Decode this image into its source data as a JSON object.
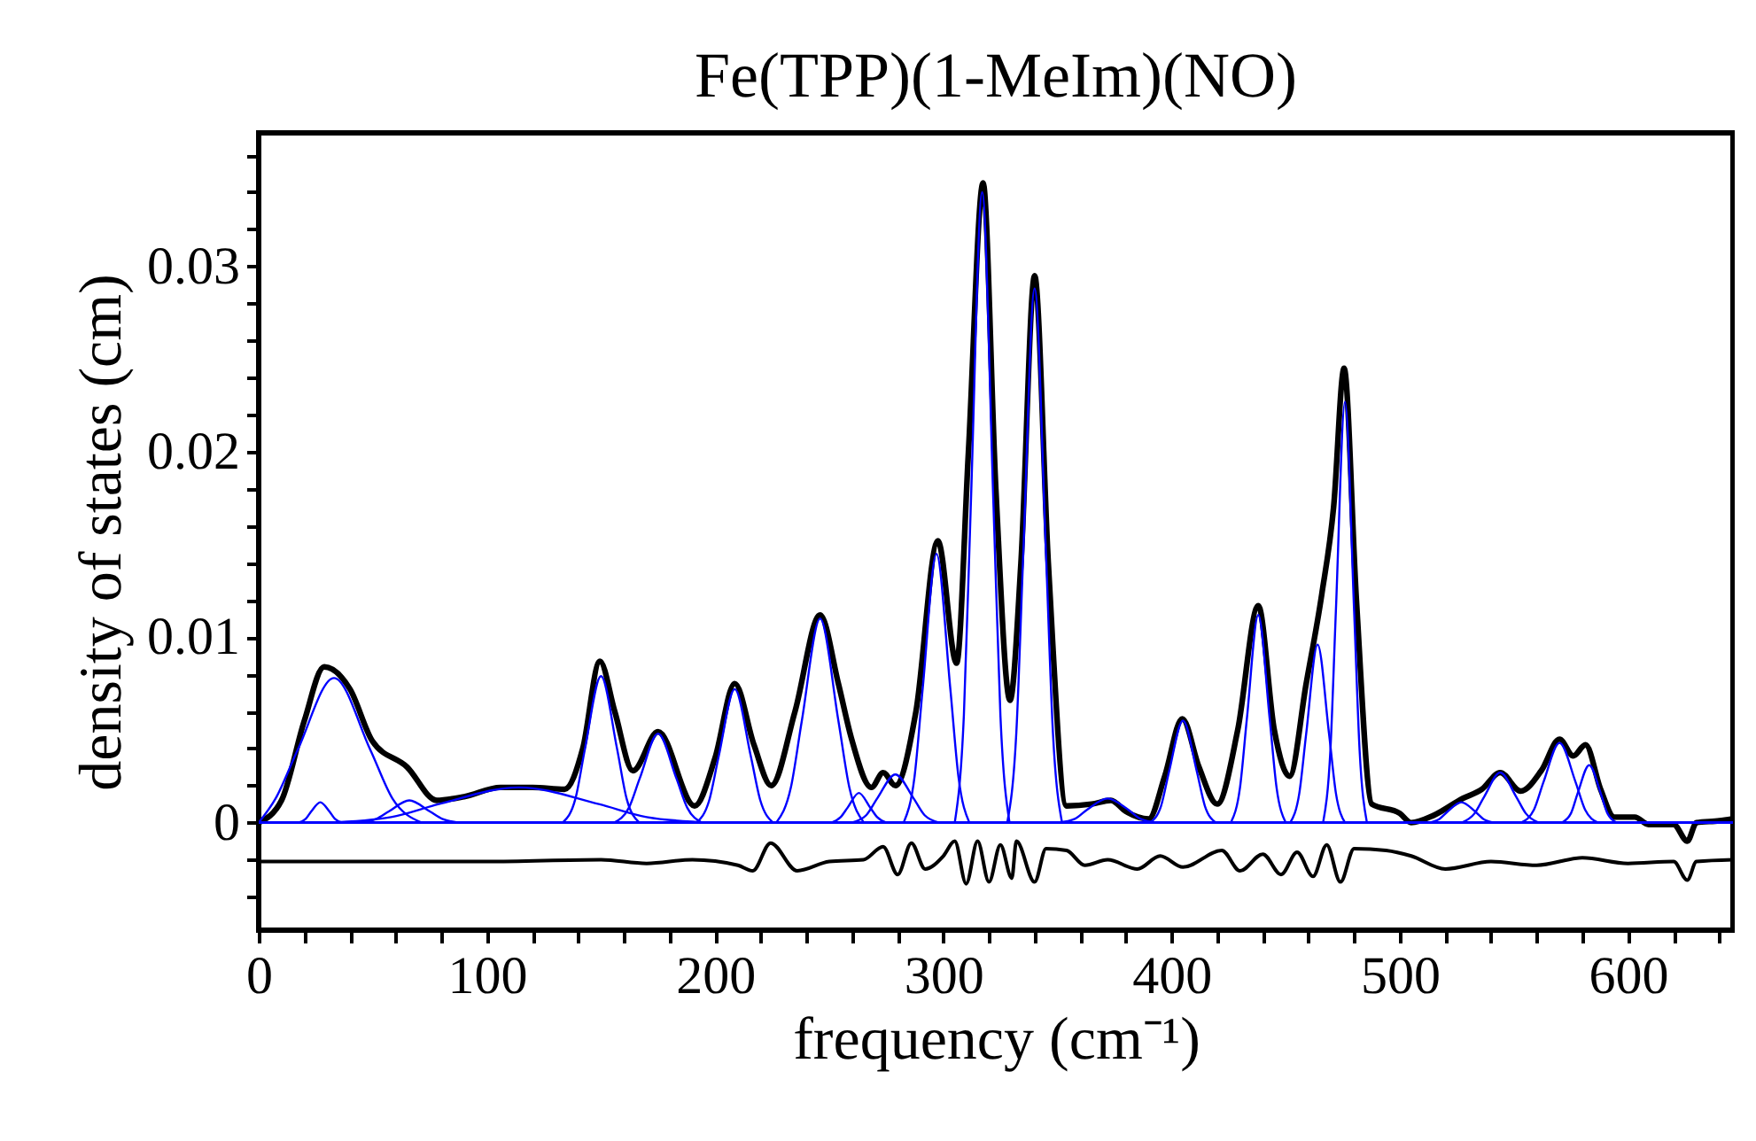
{
  "chart_data": {
    "type": "line",
    "title": "Fe(TPP)(1-MeIm)(NO)",
    "xlabel": "frequency (cm⁻¹)",
    "ylabel": "density of states (cm)",
    "xlim": [
      0,
      646
    ],
    "ylim": [
      -0.0058,
      0.0372
    ],
    "xticks": [
      0,
      {
        "value": 20,
        "label": null
      },
      {
        "value": 40,
        "label": null
      },
      {
        "value": 60,
        "label": null
      },
      {
        "value": 80,
        "label": null
      },
      100,
      {
        "value": 120,
        "label": null
      },
      {
        "value": 140,
        "label": null
      },
      {
        "value": 160,
        "label": null
      },
      {
        "value": 180,
        "label": null
      },
      200,
      {
        "value": 220,
        "label": null
      },
      {
        "value": 240,
        "label": null
      },
      {
        "value": 260,
        "label": null
      },
      {
        "value": 280,
        "label": null
      },
      300,
      {
        "value": 320,
        "label": null
      },
      {
        "value": 340,
        "label": null
      },
      {
        "value": 360,
        "label": null
      },
      {
        "value": 380,
        "label": null
      },
      400,
      {
        "value": 420,
        "label": null
      },
      {
        "value": 440,
        "label": null
      },
      {
        "value": 460,
        "label": null
      },
      {
        "value": 480,
        "label": null
      },
      500,
      {
        "value": 520,
        "label": null
      },
      {
        "value": 540,
        "label": null
      },
      {
        "value": 560,
        "label": null
      },
      {
        "value": 580,
        "label": null
      },
      600,
      {
        "value": 620,
        "label": null
      },
      {
        "value": 640,
        "label": null
      }
    ],
    "yticks": [
      {
        "value": -0.004,
        "label": null
      },
      {
        "value": -0.002,
        "label": null
      },
      0,
      {
        "value": 0.002,
        "label": null
      },
      {
        "value": 0.004,
        "label": null
      },
      {
        "value": 0.006,
        "label": null
      },
      {
        "value": 0.008,
        "label": null
      },
      0.01,
      {
        "value": 0.012,
        "label": null
      },
      {
        "value": 0.014,
        "label": null
      },
      {
        "value": 0.016,
        "label": null
      },
      {
        "value": 0.018,
        "label": null
      },
      0.02,
      {
        "value": 0.022,
        "label": null
      },
      {
        "value": 0.024,
        "label": null
      },
      {
        "value": 0.026,
        "label": null
      },
      {
        "value": 0.028,
        "label": null
      },
      0.03,
      {
        "value": 0.032,
        "label": null
      },
      {
        "value": 0.034,
        "label": null
      },
      {
        "value": 0.036,
        "label": null
      }
    ],
    "grid": false,
    "marker": "none",
    "line_style": "solid",
    "ref_lines": [
      {
        "axis": "y",
        "value": 0,
        "color": "#0000ff"
      }
    ],
    "series": [
      {
        "color": "#000000",
        "x": [
          0,
          10,
          20,
          28.7,
          40,
          49.8,
          65,
          78,
          90,
          106,
          120,
          134,
          142,
          149.5,
          156,
          164,
          175,
          191,
          200,
          208.6,
          217,
          224.6,
          235,
          246,
          254,
          259.6,
          268.5,
          273.6,
          279,
          288,
          297.6,
          305.8,
          311,
          317.4,
          323,
          329.2,
          334,
          340,
          346,
          354,
          365,
          373.4,
          380,
          390,
          397,
          404.7,
          412,
          420,
          429,
          438,
          445,
          451.7,
          459,
          465.8,
          471,
          475.6,
          481,
          487.7,
          500,
          505,
          515,
          527.5,
          536,
          544,
          553,
          562,
          570,
          576,
          581.4,
          588,
          594,
          603,
          609,
          620,
          626,
          630,
          640,
          645.6
        ],
        "values": [
          0,
          0.0012,
          0.0055,
          0.0084,
          0.0072,
          0.0044,
          0.003,
          0.0012,
          0.0014,
          0.0019,
          0.0019,
          0.0018,
          0.004,
          0.0087,
          0.006,
          0.0028,
          0.0049,
          0.0009,
          0.0035,
          0.0075,
          0.0042,
          0.002,
          0.006,
          0.0112,
          0.0075,
          0.0046,
          0.0019,
          0.0027,
          0.002,
          0.006,
          0.0152,
          0.0086,
          0.02,
          0.0345,
          0.018,
          0.0066,
          0.014,
          0.0295,
          0.014,
          0.0009,
          0.001,
          0.0012,
          0.0006,
          0.0002,
          0.0025,
          0.0056,
          0.003,
          0.001,
          0.005,
          0.0117,
          0.005,
          0.0025,
          0.0075,
          0.0123,
          0.017,
          0.0245,
          0.012,
          0.001,
          0.0005,
          0,
          0.0004,
          0.0013,
          0.0018,
          0.0027,
          0.0017,
          0.0028,
          0.0045,
          0.0036,
          0.0042,
          0.0018,
          0.0003,
          0.0003,
          -0.0001,
          -0.0001,
          -0.001,
          0,
          0.0001,
          0.0002
        ]
      },
      {
        "color": "#000000",
        "x": [
          0,
          50,
          100,
          150,
          170,
          190,
          210,
          216.5,
          224.3,
          236,
          250,
          265,
          273.6,
          280,
          286,
          292,
          300,
          305,
          310,
          315,
          320,
          325,
          330,
          332,
          340,
          345,
          354,
          362,
          372,
          385,
          395,
          405,
          422,
          430,
          440,
          448,
          455,
          462,
          468,
          474,
          480,
          494,
          505,
          520,
          540,
          560,
          580,
          600,
          620,
          626,
          630,
          646
        ],
        "values": [
          -0.0021,
          -0.0021,
          -0.0021,
          -0.002,
          -0.0022,
          -0.002,
          -0.0023,
          -0.0026,
          -0.0011,
          -0.0026,
          -0.0021,
          -0.002,
          -0.0013,
          -0.0028,
          -0.0011,
          -0.0025,
          -0.0018,
          -0.001,
          -0.0033,
          -0.001,
          -0.0032,
          -0.0012,
          -0.003,
          -0.001,
          -0.0032,
          -0.0014,
          -0.0015,
          -0.0023,
          -0.002,
          -0.0025,
          -0.0018,
          -0.0024,
          -0.0015,
          -0.0026,
          -0.0017,
          -0.0028,
          -0.0016,
          -0.0029,
          -0.0012,
          -0.0032,
          -0.0014,
          -0.0015,
          -0.0018,
          -0.0025,
          -0.0021,
          -0.0023,
          -0.0019,
          -0.0022,
          -0.0021,
          -0.0031,
          -0.0021,
          -0.002
        ]
      },
      {
        "color": "#0000ff",
        "x": [
          17.4,
          20.6,
          23,
          27,
          31,
          33.4,
          36.6
        ],
        "values": [
          0,
          0.0002,
          0.0006,
          0.0011,
          0.0006,
          0.0002,
          0
        ]
      },
      {
        "color": "#0000ff",
        "x": [
          0,
          7.4,
          17,
          33,
          49,
          58.6,
          71.4
        ],
        "values": [
          0,
          0.0013,
          0.0039,
          0.0078,
          0.0039,
          0.0013,
          0
        ]
      },
      {
        "color": "#0000ff",
        "x": [
          44.4,
          51.6,
          57,
          66,
          75,
          80.4,
          87.6
        ],
        "values": [
          0,
          0.0002,
          0.0006,
          0.0012,
          0.0006,
          0.0002,
          0
        ]
      },
      {
        "color": "#0000ff",
        "x": [
          30,
          58,
          79,
          114,
          149,
          170,
          198
        ],
        "values": [
          0,
          0.0003,
          0.001,
          0.0019,
          0.001,
          0.0003,
          0
        ]
      },
      {
        "color": "#0000ff",
        "x": [
          133.2,
          138.8,
          143,
          150,
          157,
          161.2,
          166.8
        ],
        "values": [
          0,
          0.0013,
          0.004,
          0.0079,
          0.004,
          0.0013,
          0
        ]
      },
      {
        "color": "#0000ff",
        "x": [
          155.8,
          162.2,
          167,
          175,
          183,
          187.8,
          194.2
        ],
        "values": [
          0,
          0.0008,
          0.0024,
          0.0048,
          0.0024,
          0.0008,
          0
        ]
      },
      {
        "color": "#0000ff",
        "x": [
          191.8,
          197.4,
          201.6,
          208.6,
          215.6,
          219.8,
          225.4
        ],
        "values": [
          0,
          0.0012,
          0.0036,
          0.0072,
          0.0036,
          0.0012,
          0
        ]
      },
      {
        "color": "#0000ff",
        "x": [
          226.8,
          233.2,
          238,
          246,
          254,
          258.8,
          265.2
        ],
        "values": [
          0,
          0.0019,
          0.0055,
          0.011,
          0.0055,
          0.0019,
          0
        ]
      },
      {
        "color": "#0000ff",
        "x": [
          251,
          255,
          258,
          263,
          268,
          271,
          275
        ],
        "values": [
          0,
          0.0003,
          0.0008,
          0.0016,
          0.0008,
          0.0003,
          0
        ]
      },
      {
        "color": "#0000ff",
        "x": [
          259.8,
          266.2,
          271,
          279,
          287,
          291.8,
          298.2
        ],
        "values": [
          0,
          0.0004,
          0.0013,
          0.0026,
          0.0013,
          0.0004,
          0
        ]
      },
      {
        "color": "#0000ff",
        "x": [
          282.6,
          287.4,
          291,
          297,
          303,
          306.6,
          311.4
        ],
        "values": [
          0,
          0.0025,
          0.0073,
          0.0145,
          0.0073,
          0.0025,
          0
        ]
      },
      {
        "color": "#0000ff",
        "x": [
          305,
          309,
          312,
          317,
          322,
          325,
          329
        ],
        "values": [
          0,
          0.0058,
          0.017,
          0.034,
          0.017,
          0.0058,
          0
        ]
      },
      {
        "color": "#0000ff",
        "x": [
          328,
          332,
          335,
          340,
          345,
          348,
          352
        ],
        "values": [
          0,
          0.0049,
          0.0144,
          0.0288,
          0.0144,
          0.0049,
          0
        ]
      },
      {
        "color": "#0000ff",
        "x": [
          350.4,
          357.6,
          363,
          372,
          381,
          386.4,
          393.6
        ],
        "values": [
          0,
          0.0002,
          0.0007,
          0.0013,
          0.0007,
          0.0002,
          0
        ]
      },
      {
        "color": "#0000ff",
        "x": [
          390.6,
          395.4,
          399,
          405,
          411,
          414.6,
          419.4
        ],
        "values": [
          0,
          0.0009,
          0.0028,
          0.0055,
          0.0028,
          0.0009,
          0
        ]
      },
      {
        "color": "#0000ff",
        "x": [
          426,
          430,
          433,
          438,
          443,
          446,
          450
        ],
        "values": [
          0,
          0.0019,
          0.0056,
          0.0112,
          0.0056,
          0.0019,
          0
        ]
      },
      {
        "color": "#0000ff",
        "x": [
          452,
          456,
          459,
          464,
          469,
          472,
          476
        ],
        "values": [
          0,
          0.0016,
          0.0048,
          0.0096,
          0.0048,
          0.0016,
          0
        ]
      },
      {
        "color": "#0000ff",
        "x": [
          466.4,
          469.6,
          472,
          476,
          480,
          482.4,
          485.6
        ],
        "values": [
          0,
          0.0039,
          0.0114,
          0.0227,
          0.0114,
          0.0039,
          0
        ]
      },
      {
        "color": "#0000ff",
        "x": [
          512.6,
          517.4,
          521,
          527,
          533,
          536.6,
          541.4
        ],
        "values": [
          0,
          0.0002,
          0.0006,
          0.0011,
          0.0006,
          0.0002,
          0
        ]
      },
      {
        "color": "#0000ff",
        "x": [
          527.2,
          532.8,
          537,
          544,
          551,
          555.2,
          560.8
        ],
        "values": [
          0,
          0.0005,
          0.0014,
          0.0027,
          0.0014,
          0.0005,
          0
        ]
      },
      {
        "color": "#0000ff",
        "x": [
          553.2,
          558.8,
          563,
          570,
          577,
          581.2,
          586.8
        ],
        "values": [
          0,
          0.0007,
          0.0022,
          0.0043,
          0.0022,
          0.0007,
          0
        ]
      },
      {
        "color": "#0000ff",
        "x": [
          571,
          575,
          578,
          583,
          588,
          591,
          595
        ],
        "values": [
          0,
          0.0005,
          0.0016,
          0.0031,
          0.0016,
          0.0005,
          0
        ]
      }
    ]
  }
}
